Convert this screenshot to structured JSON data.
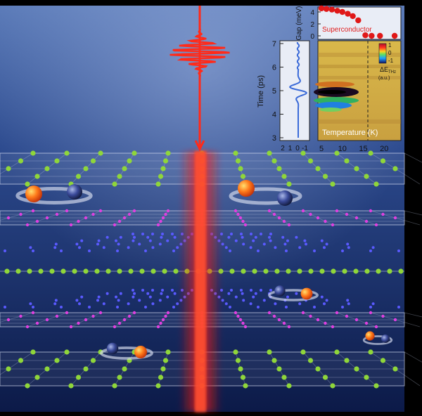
{
  "inset_time": {
    "ylabel": "Time (ps)",
    "yticks": [
      "7",
      "6",
      "5",
      "4",
      "3"
    ],
    "xticks": [
      "2",
      "1",
      "0",
      "-1"
    ]
  },
  "inset_gap": {
    "ylabel": "Gap (meV)",
    "yticks": [
      "4",
      "2",
      "0"
    ],
    "legend": "Superconductor",
    "points": [
      {
        "t": 5.0,
        "gap": 4.6
      },
      {
        "t": 6.2,
        "gap": 4.5
      },
      {
        "t": 7.5,
        "gap": 4.4
      },
      {
        "t": 8.8,
        "gap": 4.2
      },
      {
        "t": 10.0,
        "gap": 4.0
      },
      {
        "t": 11.3,
        "gap": 3.7
      },
      {
        "t": 12.5,
        "gap": 3.3
      },
      {
        "t": 13.8,
        "gap": 2.6
      },
      {
        "t": 15.5,
        "gap": 0.1
      },
      {
        "t": 17.0,
        "gap": 0.0
      },
      {
        "t": 19.0,
        "gap": 0.0
      },
      {
        "t": 22.5,
        "gap": 0.0
      }
    ]
  },
  "inset_heatmap": {
    "xlabel": "Temperature (K)",
    "xticks": [
      "5",
      "10",
      "15",
      "20"
    ],
    "colorbar_ticks": [
      "1",
      "0",
      "-1"
    ],
    "colorbar_label": "ΔE",
    "colorbar_sub": "THz",
    "colorbar_units": "(a.u.)"
  },
  "colors": {
    "pulse": "#ff2a1a",
    "beam": "#ff1a10",
    "green_atom": "#8fd63a",
    "magenta_atom": "#e040e0",
    "blue_atom": "#5a5aff",
    "orange_ball": "#ff7a1a",
    "dark_ball": "#3a4a9a"
  }
}
